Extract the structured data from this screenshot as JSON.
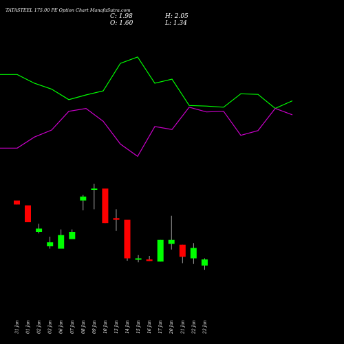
{
  "header": {
    "title": "TATASTEEL 175.00 PE Option Chart ManafaSutra.com",
    "close": "C: 1.98",
    "high": "H: 2.05",
    "open": "O: 1.60",
    "low": "L: 1.34"
  },
  "chart_data": [
    {
      "type": "line",
      "xlabel": "",
      "ylabel": "",
      "grid": false,
      "series": [
        {
          "color": "#00ff00",
          "values": [
            15.5,
            15.5,
            14.0,
            13.0,
            11.2,
            12.0,
            12.7,
            17.4,
            18.5,
            14.0,
            14.7,
            10.2,
            10.1,
            9.9,
            12.2,
            12.1,
            9.7,
            11.0
          ]
        },
        {
          "color": "#cc00cc",
          "values": [
            2.9,
            2.9,
            4.8,
            6.0,
            9.2,
            9.7,
            7.5,
            3.6,
            1.5,
            6.6,
            6.1,
            9.9,
            9.1,
            9.2,
            5.1,
            5.9,
            9.7,
            8.6
          ]
        }
      ]
    },
    {
      "type": "candlestick",
      "categories": [
        "31 Jan",
        "01 Jan",
        "02 Jan",
        "03 Jan",
        "06 Jan",
        "07 Jan",
        "08 Jan",
        "09 Jan",
        "10 Jan",
        "13 Jan",
        "14 Jan",
        "15 Jan",
        "16 Jan",
        "17 Jan",
        "20 Jan",
        "21 Jan",
        "22 Jan",
        "23 Jan"
      ],
      "ohlc": [
        {
          "o": 5.65,
          "h": 5.65,
          "l": 5.4,
          "c": 5.4
        },
        {
          "o": 5.35,
          "h": 5.35,
          "l": 4.3,
          "c": 4.3
        },
        {
          "o": 3.7,
          "h": 4.2,
          "l": 3.6,
          "c": 3.9
        },
        {
          "o": 2.8,
          "h": 3.4,
          "l": 2.65,
          "c": 3.05
        },
        {
          "o": 2.65,
          "h": 3.85,
          "l": 2.65,
          "c": 3.5
        },
        {
          "o": 3.25,
          "h": 3.85,
          "l": 3.25,
          "c": 3.7
        },
        {
          "o": 5.65,
          "h": 6.0,
          "l": 5.05,
          "c": 5.9
        },
        {
          "o": 6.4,
          "h": 6.7,
          "l": 5.1,
          "c": 6.4
        },
        {
          "o": 6.4,
          "h": 6.4,
          "l": 4.25,
          "c": 4.25
        },
        {
          "o": 4.55,
          "h": 5.1,
          "l": 3.75,
          "c": 4.45
        },
        {
          "o": 4.45,
          "h": 4.45,
          "l": 1.9,
          "c": 2.05
        },
        {
          "o": 2.05,
          "h": 2.25,
          "l": 1.8,
          "c": 2.05
        },
        {
          "o": 1.98,
          "h": 2.2,
          "l": 1.88,
          "c": 1.88
        },
        {
          "o": 1.85,
          "h": 3.2,
          "l": 1.85,
          "c": 3.2
        },
        {
          "o": 2.95,
          "h": 4.7,
          "l": 2.6,
          "c": 3.2
        },
        {
          "o": 2.9,
          "h": 2.9,
          "l": 1.75,
          "c": 2.15
        },
        {
          "o": 2.05,
          "h": 3.0,
          "l": 1.7,
          "c": 2.7
        },
        {
          "o": 1.6,
          "h": 2.05,
          "l": 1.34,
          "c": 1.98
        }
      ],
      "up_color": "#00ff00",
      "down_color": "#ff0000"
    }
  ]
}
